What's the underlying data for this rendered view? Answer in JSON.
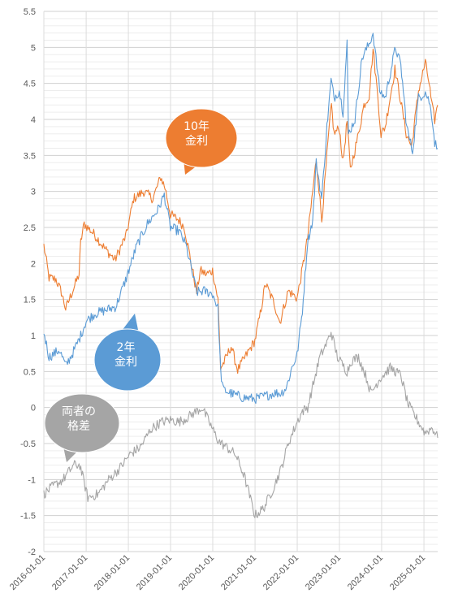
{
  "chart_data": {
    "type": "line",
    "title": "",
    "xlabel": "",
    "ylabel": "",
    "ylim": [
      -2,
      5.5
    ],
    "xlim": [
      "2016-01-01",
      "2025-04-30"
    ],
    "yticks": [
      "5.5",
      "5",
      "4.5",
      "4",
      "3.5",
      "3",
      "2.5",
      "2",
      "1.5",
      "1",
      "0.5",
      "0",
      "-0.5",
      "-1",
      "-1.5",
      "-2"
    ],
    "xticks": [
      "2016-01-01",
      "2017-01-01",
      "2018-01-01",
      "2019-01-01",
      "2020-01-01",
      "2021-01-01",
      "2022-01-01",
      "2023-01-01",
      "2024-01-01",
      "2025-01-01"
    ],
    "grid": true,
    "series": [
      {
        "name": "10年金利",
        "color": "#ED7D31",
        "x": [
          "2016-01-01",
          "2016-02-15",
          "2016-04-15",
          "2016-06-01",
          "2016-07-08",
          "2016-09-01",
          "2016-11-01",
          "2016-11-15",
          "2016-12-15",
          "2017-03-15",
          "2017-06-15",
          "2017-09-08",
          "2017-12-15",
          "2018-02-15",
          "2018-05-15",
          "2018-08-01",
          "2018-10-08",
          "2018-11-15",
          "2018-12-31",
          "2019-03-15",
          "2019-05-01",
          "2019-08-15",
          "2019-09-15",
          "2019-11-08",
          "2019-12-31",
          "2020-02-15",
          "2020-03-09",
          "2020-04-15",
          "2020-06-08",
          "2020-08-04",
          "2020-09-30",
          "2020-12-31",
          "2021-02-15",
          "2021-03-31",
          "2021-06-15",
          "2021-08-04",
          "2021-10-15",
          "2021-12-31",
          "2022-02-15",
          "2022-03-31",
          "2022-05-15",
          "2022-06-15",
          "2022-08-01",
          "2022-09-30",
          "2022-10-24",
          "2022-11-15",
          "2022-12-31",
          "2023-02-01",
          "2023-03-08",
          "2023-04-05",
          "2023-06-15",
          "2023-08-01",
          "2023-09-15",
          "2023-10-19",
          "2023-11-30",
          "2023-12-27",
          "2024-02-01",
          "2024-04-25",
          "2024-06-15",
          "2024-08-01",
          "2024-09-16",
          "2024-11-15",
          "2025-01-13",
          "2025-02-15",
          "2025-03-10",
          "2025-04-04",
          "2025-04-30"
        ],
        "values": [
          2.25,
          1.8,
          1.78,
          1.6,
          1.37,
          1.6,
          1.85,
          2.3,
          2.55,
          2.4,
          2.2,
          2.05,
          2.4,
          2.9,
          3.0,
          2.9,
          3.2,
          3.05,
          2.68,
          2.6,
          2.5,
          1.6,
          1.9,
          1.85,
          1.9,
          1.5,
          0.55,
          0.65,
          0.85,
          0.52,
          0.68,
          0.93,
          1.3,
          1.72,
          1.45,
          1.18,
          1.62,
          1.52,
          1.93,
          2.35,
          3.0,
          3.45,
          2.6,
          3.8,
          4.2,
          3.8,
          3.88,
          3.4,
          3.98,
          3.3,
          3.8,
          4.2,
          4.33,
          4.98,
          4.3,
          3.79,
          3.9,
          4.7,
          4.25,
          3.8,
          3.62,
          4.4,
          4.79,
          4.5,
          4.2,
          3.99,
          4.2
        ]
      },
      {
        "name": "2年金利",
        "color": "#5B9BD5",
        "x": [
          "2016-01-01",
          "2016-02-15",
          "2016-05-15",
          "2016-07-08",
          "2016-09-15",
          "2016-11-15",
          "2016-12-31",
          "2017-03-15",
          "2017-06-15",
          "2017-09-15",
          "2017-12-15",
          "2018-03-15",
          "2018-06-15",
          "2018-09-15",
          "2018-11-08",
          "2018-12-31",
          "2019-03-15",
          "2019-05-15",
          "2019-08-15",
          "2019-10-15",
          "2019-12-31",
          "2020-02-15",
          "2020-03-09",
          "2020-03-31",
          "2020-06-15",
          "2020-09-15",
          "2020-12-31",
          "2021-03-31",
          "2021-06-15",
          "2021-08-15",
          "2021-09-30",
          "2021-11-15",
          "2021-12-31",
          "2022-02-15",
          "2022-03-31",
          "2022-05-15",
          "2022-06-14",
          "2022-08-01",
          "2022-09-15",
          "2022-10-21",
          "2022-11-15",
          "2022-12-31",
          "2023-02-01",
          "2023-03-08",
          "2023-03-20",
          "2023-05-15",
          "2023-07-15",
          "2023-09-15",
          "2023-10-19",
          "2023-12-15",
          "2024-02-01",
          "2024-04-30",
          "2024-06-15",
          "2024-08-05",
          "2024-09-24",
          "2024-11-15",
          "2025-01-13",
          "2025-02-15",
          "2025-03-15",
          "2025-04-04",
          "2025-04-30"
        ],
        "values": [
          1.05,
          0.7,
          0.8,
          0.58,
          0.78,
          1.0,
          1.2,
          1.3,
          1.35,
          1.4,
          1.8,
          2.25,
          2.55,
          2.75,
          2.95,
          2.5,
          2.45,
          2.25,
          1.6,
          1.62,
          1.58,
          1.38,
          0.5,
          0.25,
          0.19,
          0.14,
          0.12,
          0.16,
          0.2,
          0.2,
          0.28,
          0.55,
          0.73,
          1.35,
          2.3,
          2.6,
          3.4,
          2.9,
          3.9,
          4.55,
          4.3,
          4.4,
          4.1,
          5.07,
          3.8,
          4.0,
          4.85,
          5.05,
          5.2,
          4.4,
          4.3,
          5.0,
          4.75,
          3.9,
          3.55,
          4.3,
          4.38,
          4.25,
          4.0,
          3.68,
          3.6
        ]
      },
      {
        "name": "両者の格差",
        "color": "#A5A5A5",
        "x": [
          "2016-01-01",
          "2016-03-15",
          "2016-06-15",
          "2016-09-15",
          "2016-11-08",
          "2017-01-15",
          "2017-04-15",
          "2017-07-15",
          "2017-10-15",
          "2018-01-15",
          "2018-04-15",
          "2018-07-15",
          "2018-10-15",
          "2018-12-31",
          "2019-03-15",
          "2019-05-15",
          "2019-08-15",
          "2019-09-30",
          "2019-12-31",
          "2020-02-15",
          "2020-03-15",
          "2020-04-30",
          "2020-07-15",
          "2020-09-30",
          "2020-12-31",
          "2021-03-15",
          "2021-05-31",
          "2021-08-15",
          "2021-10-15",
          "2021-12-31",
          "2022-02-15",
          "2022-04-01",
          "2022-06-15",
          "2022-07-15",
          "2022-09-15",
          "2022-10-21",
          "2022-12-15",
          "2023-02-15",
          "2023-03-08",
          "2023-04-15",
          "2023-06-15",
          "2023-08-15",
          "2023-10-01",
          "2023-12-15",
          "2024-03-15",
          "2024-06-15",
          "2024-08-15",
          "2024-09-20",
          "2024-11-15",
          "2025-01-10",
          "2025-03-15",
          "2025-04-30"
        ],
        "values": [
          -1.2,
          -1.1,
          -1.0,
          -0.8,
          -0.8,
          -1.25,
          -1.2,
          -1.0,
          -0.85,
          -0.65,
          -0.55,
          -0.3,
          -0.2,
          -0.17,
          -0.2,
          -0.15,
          -0.05,
          0.0,
          -0.3,
          -0.45,
          -0.5,
          -0.55,
          -0.65,
          -0.95,
          -1.5,
          -1.4,
          -1.15,
          -0.85,
          -0.5,
          -0.2,
          -0.05,
          0.0,
          0.5,
          0.7,
          0.9,
          1.05,
          0.7,
          0.55,
          0.5,
          0.65,
          0.7,
          0.45,
          0.2,
          0.4,
          0.55,
          0.45,
          0.05,
          -0.05,
          -0.2,
          -0.35,
          -0.28,
          -0.42
        ]
      }
    ],
    "annotations": [
      {
        "name": "10年金利",
        "lines": [
          "10年",
          "金利"
        ],
        "color": "#ED7D31"
      },
      {
        "name": "2年金利",
        "lines": [
          "2年",
          "金利"
        ],
        "color": "#5B9BD5"
      },
      {
        "name": "両者の格差",
        "lines": [
          "両者の",
          "格差"
        ],
        "color": "#A5A5A5"
      }
    ]
  }
}
